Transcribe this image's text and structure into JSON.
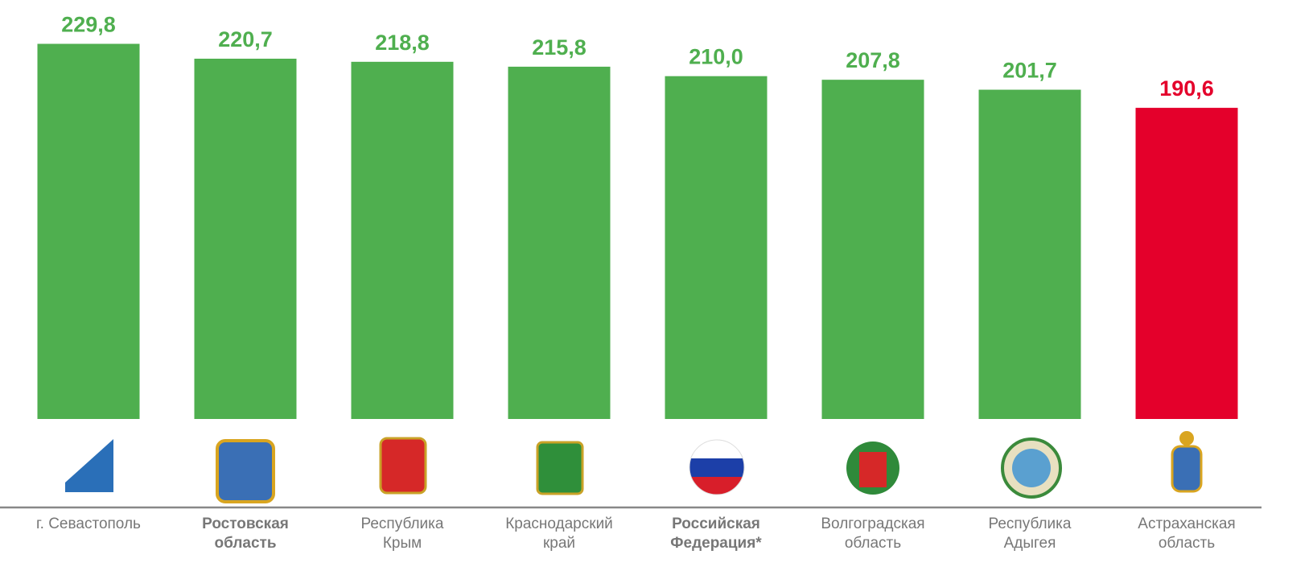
{
  "chart_data": {
    "type": "bar",
    "categories": [
      "г. Севастополь",
      "Ростовская\nобласть",
      "Республика\nКрым",
      "Краснодарский\nкрай",
      "Российская\nФедерация*",
      "Волгоградская\nобласть",
      "Республика\nАдыгея",
      "Астраханская\nобласть"
    ],
    "category_bold": [
      false,
      true,
      false,
      false,
      true,
      false,
      false,
      false
    ],
    "values": [
      229.8,
      220.7,
      218.8,
      215.8,
      210.0,
      207.8,
      201.7,
      190.6
    ],
    "value_labels": [
      "229,8",
      "220,7",
      "218,8",
      "215,8",
      "210,0",
      "207,8",
      "201,7",
      "190,6"
    ],
    "colors": [
      "#4faf4f",
      "#4faf4f",
      "#4faf4f",
      "#4faf4f",
      "#4faf4f",
      "#4faf4f",
      "#4faf4f",
      "#e4002b"
    ],
    "ylim": [
      0,
      250
    ]
  }
}
